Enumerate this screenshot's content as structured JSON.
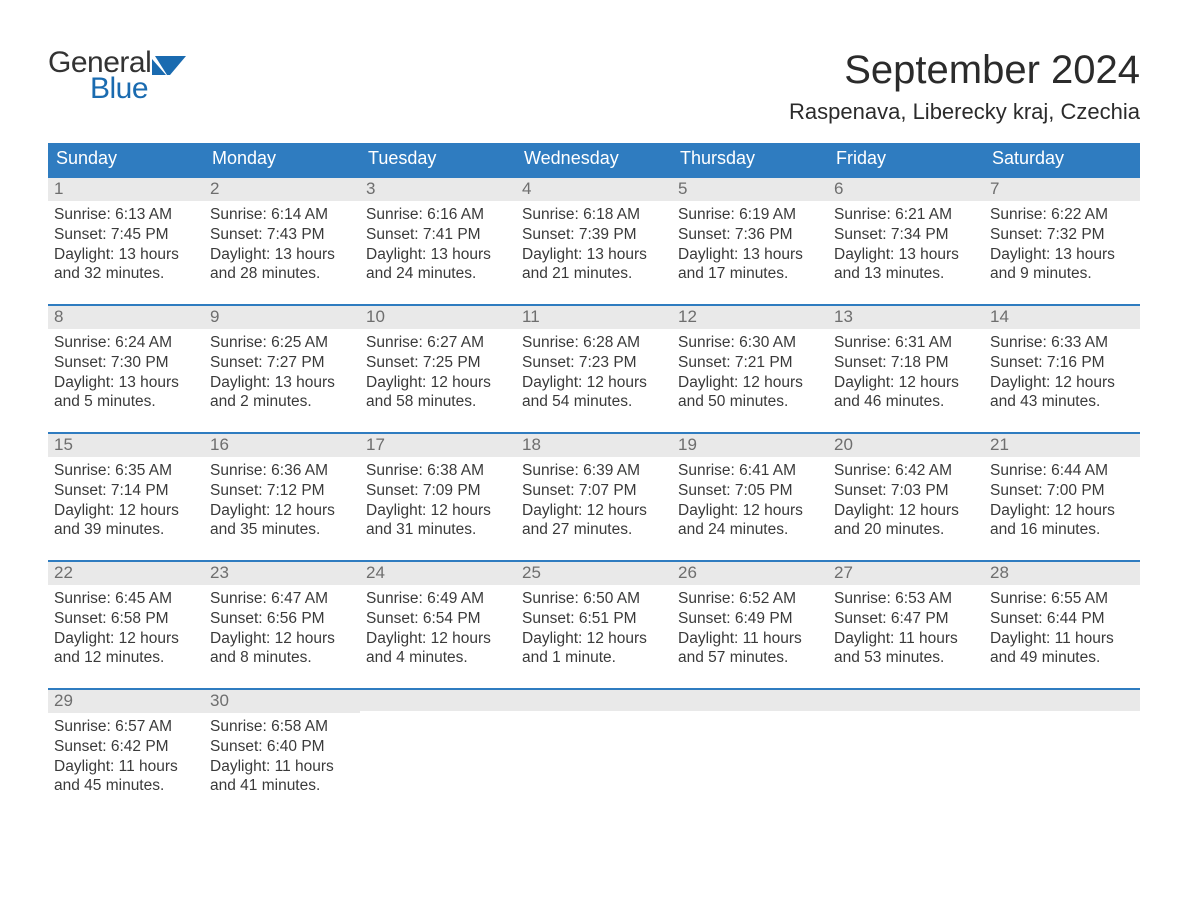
{
  "brand": {
    "word1": "General",
    "word2": "Blue",
    "text_color": "#333333",
    "accent_color": "#1a6bb0"
  },
  "title": "September 2024",
  "location": "Raspenava, Liberecky kraj, Czechia",
  "colors": {
    "header_bg": "#2f7cc0",
    "header_text": "#ffffff",
    "daynum_bg": "#e9e9e9",
    "daynum_text": "#6e6e6e",
    "body_text": "#3a3a3a",
    "row_border": "#2f7cc0",
    "page_bg": "#ffffff"
  },
  "typography": {
    "title_fontsize": 40,
    "location_fontsize": 22,
    "dow_fontsize": 18,
    "daynum_fontsize": 17,
    "body_fontsize": 15.5
  },
  "layout": {
    "columns": 7,
    "weeks": 5,
    "leading_blanks": 0,
    "trailing_blanks": 5
  },
  "days_of_week": [
    "Sunday",
    "Monday",
    "Tuesday",
    "Wednesday",
    "Thursday",
    "Friday",
    "Saturday"
  ],
  "days": [
    {
      "n": "1",
      "sunrise": "Sunrise: 6:13 AM",
      "sunset": "Sunset: 7:45 PM",
      "dl1": "Daylight: 13 hours",
      "dl2": "and 32 minutes."
    },
    {
      "n": "2",
      "sunrise": "Sunrise: 6:14 AM",
      "sunset": "Sunset: 7:43 PM",
      "dl1": "Daylight: 13 hours",
      "dl2": "and 28 minutes."
    },
    {
      "n": "3",
      "sunrise": "Sunrise: 6:16 AM",
      "sunset": "Sunset: 7:41 PM",
      "dl1": "Daylight: 13 hours",
      "dl2": "and 24 minutes."
    },
    {
      "n": "4",
      "sunrise": "Sunrise: 6:18 AM",
      "sunset": "Sunset: 7:39 PM",
      "dl1": "Daylight: 13 hours",
      "dl2": "and 21 minutes."
    },
    {
      "n": "5",
      "sunrise": "Sunrise: 6:19 AM",
      "sunset": "Sunset: 7:36 PM",
      "dl1": "Daylight: 13 hours",
      "dl2": "and 17 minutes."
    },
    {
      "n": "6",
      "sunrise": "Sunrise: 6:21 AM",
      "sunset": "Sunset: 7:34 PM",
      "dl1": "Daylight: 13 hours",
      "dl2": "and 13 minutes."
    },
    {
      "n": "7",
      "sunrise": "Sunrise: 6:22 AM",
      "sunset": "Sunset: 7:32 PM",
      "dl1": "Daylight: 13 hours",
      "dl2": "and 9 minutes."
    },
    {
      "n": "8",
      "sunrise": "Sunrise: 6:24 AM",
      "sunset": "Sunset: 7:30 PM",
      "dl1": "Daylight: 13 hours",
      "dl2": "and 5 minutes."
    },
    {
      "n": "9",
      "sunrise": "Sunrise: 6:25 AM",
      "sunset": "Sunset: 7:27 PM",
      "dl1": "Daylight: 13 hours",
      "dl2": "and 2 minutes."
    },
    {
      "n": "10",
      "sunrise": "Sunrise: 6:27 AM",
      "sunset": "Sunset: 7:25 PM",
      "dl1": "Daylight: 12 hours",
      "dl2": "and 58 minutes."
    },
    {
      "n": "11",
      "sunrise": "Sunrise: 6:28 AM",
      "sunset": "Sunset: 7:23 PM",
      "dl1": "Daylight: 12 hours",
      "dl2": "and 54 minutes."
    },
    {
      "n": "12",
      "sunrise": "Sunrise: 6:30 AM",
      "sunset": "Sunset: 7:21 PM",
      "dl1": "Daylight: 12 hours",
      "dl2": "and 50 minutes."
    },
    {
      "n": "13",
      "sunrise": "Sunrise: 6:31 AM",
      "sunset": "Sunset: 7:18 PM",
      "dl1": "Daylight: 12 hours",
      "dl2": "and 46 minutes."
    },
    {
      "n": "14",
      "sunrise": "Sunrise: 6:33 AM",
      "sunset": "Sunset: 7:16 PM",
      "dl1": "Daylight: 12 hours",
      "dl2": "and 43 minutes."
    },
    {
      "n": "15",
      "sunrise": "Sunrise: 6:35 AM",
      "sunset": "Sunset: 7:14 PM",
      "dl1": "Daylight: 12 hours",
      "dl2": "and 39 minutes."
    },
    {
      "n": "16",
      "sunrise": "Sunrise: 6:36 AM",
      "sunset": "Sunset: 7:12 PM",
      "dl1": "Daylight: 12 hours",
      "dl2": "and 35 minutes."
    },
    {
      "n": "17",
      "sunrise": "Sunrise: 6:38 AM",
      "sunset": "Sunset: 7:09 PM",
      "dl1": "Daylight: 12 hours",
      "dl2": "and 31 minutes."
    },
    {
      "n": "18",
      "sunrise": "Sunrise: 6:39 AM",
      "sunset": "Sunset: 7:07 PM",
      "dl1": "Daylight: 12 hours",
      "dl2": "and 27 minutes."
    },
    {
      "n": "19",
      "sunrise": "Sunrise: 6:41 AM",
      "sunset": "Sunset: 7:05 PM",
      "dl1": "Daylight: 12 hours",
      "dl2": "and 24 minutes."
    },
    {
      "n": "20",
      "sunrise": "Sunrise: 6:42 AM",
      "sunset": "Sunset: 7:03 PM",
      "dl1": "Daylight: 12 hours",
      "dl2": "and 20 minutes."
    },
    {
      "n": "21",
      "sunrise": "Sunrise: 6:44 AM",
      "sunset": "Sunset: 7:00 PM",
      "dl1": "Daylight: 12 hours",
      "dl2": "and 16 minutes."
    },
    {
      "n": "22",
      "sunrise": "Sunrise: 6:45 AM",
      "sunset": "Sunset: 6:58 PM",
      "dl1": "Daylight: 12 hours",
      "dl2": "and 12 minutes."
    },
    {
      "n": "23",
      "sunrise": "Sunrise: 6:47 AM",
      "sunset": "Sunset: 6:56 PM",
      "dl1": "Daylight: 12 hours",
      "dl2": "and 8 minutes."
    },
    {
      "n": "24",
      "sunrise": "Sunrise: 6:49 AM",
      "sunset": "Sunset: 6:54 PM",
      "dl1": "Daylight: 12 hours",
      "dl2": "and 4 minutes."
    },
    {
      "n": "25",
      "sunrise": "Sunrise: 6:50 AM",
      "sunset": "Sunset: 6:51 PM",
      "dl1": "Daylight: 12 hours",
      "dl2": "and 1 minute."
    },
    {
      "n": "26",
      "sunrise": "Sunrise: 6:52 AM",
      "sunset": "Sunset: 6:49 PM",
      "dl1": "Daylight: 11 hours",
      "dl2": "and 57 minutes."
    },
    {
      "n": "27",
      "sunrise": "Sunrise: 6:53 AM",
      "sunset": "Sunset: 6:47 PM",
      "dl1": "Daylight: 11 hours",
      "dl2": "and 53 minutes."
    },
    {
      "n": "28",
      "sunrise": "Sunrise: 6:55 AM",
      "sunset": "Sunset: 6:44 PM",
      "dl1": "Daylight: 11 hours",
      "dl2": "and 49 minutes."
    },
    {
      "n": "29",
      "sunrise": "Sunrise: 6:57 AM",
      "sunset": "Sunset: 6:42 PM",
      "dl1": "Daylight: 11 hours",
      "dl2": "and 45 minutes."
    },
    {
      "n": "30",
      "sunrise": "Sunrise: 6:58 AM",
      "sunset": "Sunset: 6:40 PM",
      "dl1": "Daylight: 11 hours",
      "dl2": "and 41 minutes."
    }
  ]
}
